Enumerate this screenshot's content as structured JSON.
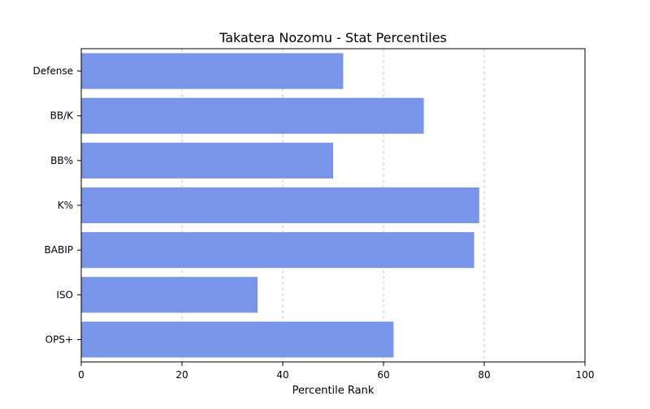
{
  "chart_data": {
    "type": "bar",
    "orientation": "horizontal",
    "title": "Takatera Nozomu - Stat Percentiles",
    "xlabel": "Percentile Rank",
    "ylabel": "",
    "xlim": [
      0,
      100
    ],
    "xticks": [
      0,
      20,
      40,
      60,
      80,
      100
    ],
    "grid": "x-dashed",
    "categories": [
      "Defense",
      "BB/K",
      "BB%",
      "K%",
      "BABIP",
      "ISO",
      "OPS+"
    ],
    "values": [
      52,
      68,
      50,
      79,
      78,
      35,
      62
    ],
    "bar_color": "#7995e9",
    "grid_color": "#c8c8c8"
  }
}
